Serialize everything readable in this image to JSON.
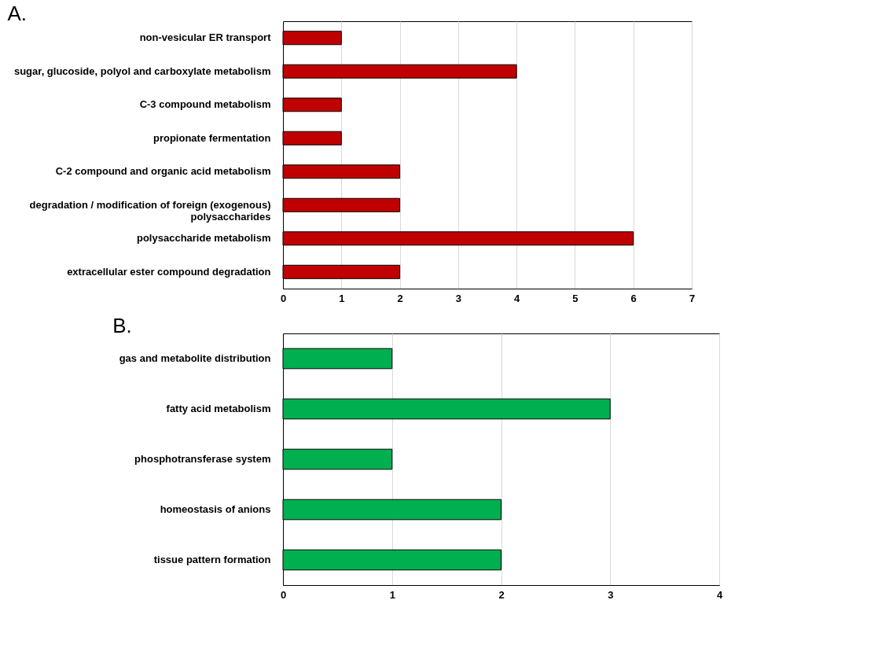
{
  "chart_data": [
    {
      "type": "bar",
      "title": "A.",
      "orientation": "horizontal",
      "categories": [
        "non-vesicular ER transport",
        "sugar, glucoside, polyol and carboxylate metabolism",
        "C-3 compound metabolism",
        "propionate fermentation",
        "C-2 compound and organic acid metabolism",
        "degradation / modification of foreign (exogenous) polysaccharides",
        "polysaccharide metabolism",
        "extracellular ester compound degradation"
      ],
      "values": [
        1,
        4,
        1,
        1,
        2,
        2,
        6,
        2
      ],
      "color": "#c00000",
      "xlim": [
        0,
        7
      ],
      "xticks": [
        0,
        1,
        2,
        3,
        4,
        5,
        6,
        7
      ],
      "grid": "x"
    },
    {
      "type": "bar",
      "title": "B.",
      "orientation": "horizontal",
      "categories": [
        "gas and metabolite distribution",
        "fatty acid metabolism",
        "phosphotransferase system",
        "homeostasis of anions",
        "tissue pattern formation"
      ],
      "values": [
        1,
        3,
        1,
        2,
        2
      ],
      "color": "#00b050",
      "xlim": [
        0,
        4
      ],
      "xticks": [
        0,
        1,
        2,
        3,
        4
      ],
      "grid": "x"
    }
  ]
}
